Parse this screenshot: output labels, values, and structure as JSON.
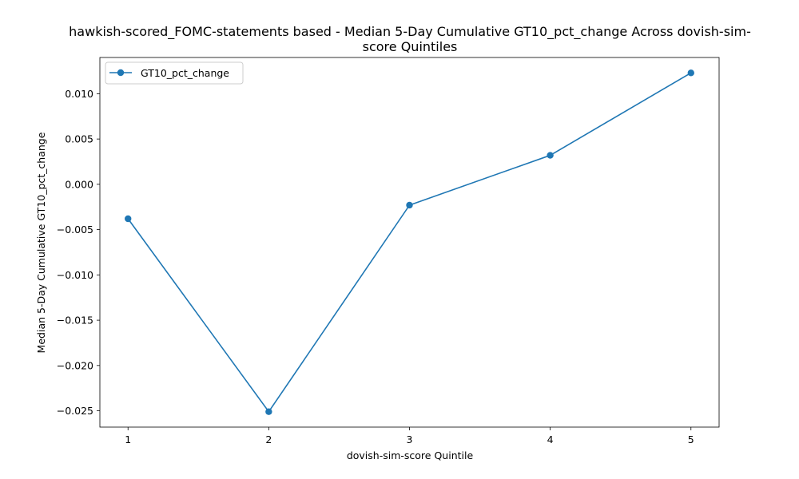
{
  "chart_data": {
    "type": "line",
    "title_lines": [
      "hawkish-scored_FOMC-statements based - Median 5-Day Cumulative GT10_pct_change Across dovish-sim-",
      "score Quintiles"
    ],
    "xlabel": "dovish-sim-score Quintile",
    "ylabel": "Median 5-Day Cumulative GT10_pct_change",
    "x": [
      1,
      2,
      3,
      4,
      5
    ],
    "xticks": [
      "1",
      "2",
      "3",
      "4",
      "5"
    ],
    "yticks": [
      -0.025,
      -0.02,
      -0.015,
      -0.01,
      -0.005,
      0.0,
      0.005,
      0.01
    ],
    "ytick_labels": [
      "−0.025",
      "−0.020",
      "−0.015",
      "−0.010",
      "−0.005",
      "0.000",
      "0.005",
      "0.010"
    ],
    "xlim": [
      0.8,
      5.2
    ],
    "ylim": [
      -0.0268,
      0.014
    ],
    "series": [
      {
        "name": "GT10_pct_change",
        "color": "#1f77b4",
        "marker": "circle",
        "values": [
          -0.0038,
          -0.0251,
          -0.0023,
          0.0032,
          0.0123
        ]
      }
    ],
    "legend": {
      "position": "top-left",
      "entries": [
        "GT10_pct_change"
      ]
    },
    "grid": false
  }
}
